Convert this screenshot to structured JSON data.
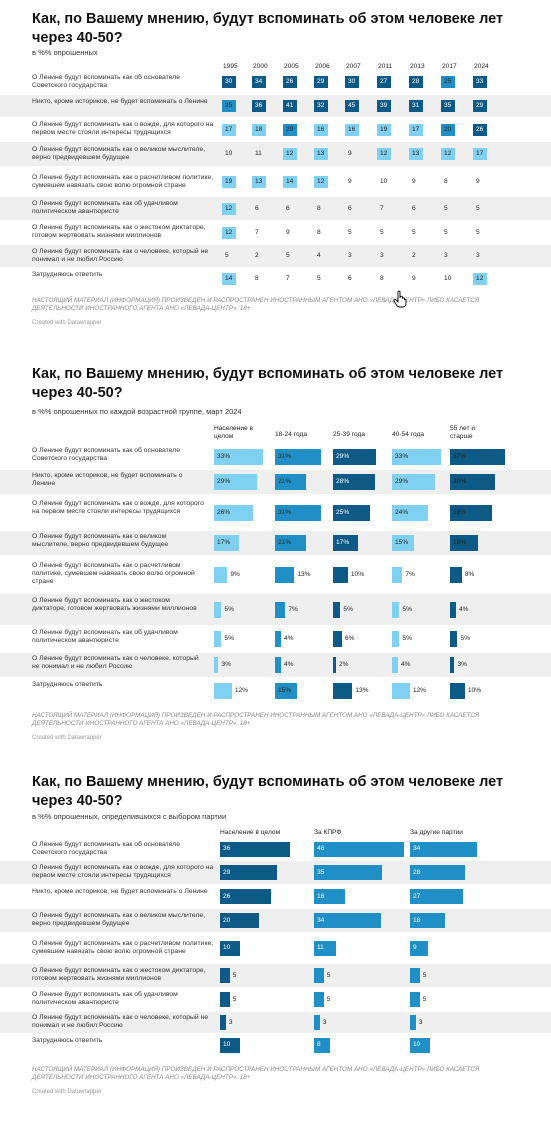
{
  "colors": {
    "dark": "#0d5a87",
    "mid": "#1f8fc6",
    "light": "#7fd0f1"
  },
  "charts": [
    {
      "title": "Как, по Вашему мнению, будут вспоминать об этом человеке лет через 40-50?",
      "subtitle": "в %% опрошенных",
      "note": "НАСТОЯЩИЙ МАТЕРИАЛ (ИНФОРМАЦИЯ) ПРОИЗВЕДЕН И РАСПРОСТРАНЕН ИНОСТРАННЫМ АГЕНТОМ АНО «ЛЕВАДА-ЦЕНТР» ЛИБО КАСАЕТСЯ ДЕЯТЕЛЬНОСТИ ИНОСТРАННОГО АГЕНТА АНО «ЛЕВАДА-ЦЕНТР». 18+",
      "credit": "Created with Datawrapper"
    },
    {
      "title": "Как, по Вашему мнению, будут вспоминать об этом человеке лет через 40-50?",
      "subtitle": "в %% опрошенных по каждой возрастной группе, март 2024",
      "note": "НАСТОЯЩИЙ МАТЕРИАЛ (ИНФОРМАЦИЯ) ПРОИЗВЕДЕН И РАСПРОСТРАНЕН ИНОСТРАННЫМ АГЕНТОМ АНО «ЛЕВАДА-ЦЕНТР» ЛИБО КАСАЕТСЯ ДЕЯТЕЛЬНОСТИ ИНОСТРАННОГО АГЕНТА АНО «ЛЕВАДА-ЦЕНТР». 18+",
      "credit": "Created with Datawrapper"
    },
    {
      "title": "Как, по Вашему мнению, будут вспоминать об этом человеке лет через 40-50?",
      "subtitle": "в %% опрошенных, определившихся с выбором партии",
      "note": "НАСТОЯЩИЙ МАТЕРИАЛ (ИНФОРМАЦИЯ) ПРОИЗВЕДЕН И РАСПРОСТРАНЕН ИНОСТРАННЫМ АГЕНТОМ АНО «ЛЕВАДА-ЦЕНТР» ЛИБО КАСАЕТСЯ ДЕЯТЕЛЬНОСТИ ИНОСТРАННОГО АГЕНТА АНО «ЛЕВАДА-ЦЕНТР». 18+",
      "credit": "Created with Datawrapper"
    }
  ],
  "chart_data": [
    {
      "type": "table",
      "columns": [
        "1995",
        "2000",
        "2005",
        "2006",
        "2007",
        "2011",
        "2013",
        "2017",
        "2024"
      ],
      "rows": [
        {
          "label": "О Ленине будут вспоминать как об основателе Советского государства",
          "values": [
            30,
            34,
            26,
            29,
            30,
            27,
            28,
            25,
            33
          ]
        },
        {
          "label": "Никто, кроме историков, не будет вспоминать о Ленине",
          "values": [
            25,
            36,
            41,
            32,
            45,
            39,
            31,
            35,
            29
          ]
        },
        {
          "label": "О Ленине будут вспоминать как о вожде, для которого на первом месте стояли интересы трудящихся",
          "values": [
            17,
            18,
            20,
            16,
            16,
            19,
            17,
            20,
            26
          ]
        },
        {
          "label": "О Ленине будут вспоминать как о великом мыслителе, верно предвидевшем будущее",
          "values": [
            10,
            11,
            12,
            13,
            9,
            12,
            13,
            12,
            17
          ]
        },
        {
          "label": "О Ленине будут вспоминать как о расчетливом политике, сумевшем навязать свою волю огромной стране",
          "values": [
            19,
            13,
            14,
            12,
            9,
            10,
            9,
            8,
            9
          ]
        },
        {
          "label": "О Ленине будут вспоминать как об удачливом политическом авантюристе",
          "values": [
            12,
            6,
            6,
            8,
            6,
            7,
            6,
            5,
            5
          ]
        },
        {
          "label": "О Ленине будут вспоминать как о жестоком диктаторе, готовом жертвовать жизнями миллионов",
          "values": [
            12,
            7,
            9,
            8,
            5,
            5,
            5,
            5,
            5
          ]
        },
        {
          "label": "О Ленине будут вспоминать как о человеке, который не понимал и не любил Россию",
          "values": [
            5,
            2,
            5,
            4,
            3,
            3,
            2,
            3,
            3
          ]
        },
        {
          "label": "Затрудняюсь ответить",
          "values": [
            14,
            8,
            7,
            5,
            6,
            8,
            9,
            10,
            12
          ]
        }
      ]
    },
    {
      "type": "table",
      "columns": [
        "Население в целом",
        "18-24 года",
        "25-39 года",
        "40-54 года",
        "55 лет и старше"
      ],
      "rows": [
        {
          "label": "О Ленине будут вспоминать как об основателе Советского государства",
          "values": [
            "33%",
            "31%",
            "29%",
            "33%",
            "37%"
          ]
        },
        {
          "label": "Никто, кроме историков, не будет вспоминать о Ленине",
          "values": [
            "29%",
            "21%",
            "28%",
            "29%",
            "30%"
          ]
        },
        {
          "label": "О Ленине будут вспоминать как о вожде, для которого на первом месте стояли интересы трудящихся",
          "values": [
            "26%",
            "31%",
            "25%",
            "24%",
            "28%"
          ]
        },
        {
          "label": "О Ленине будут вспоминать как о великом мыслителе, верно предвидевшем будущее",
          "values": [
            "17%",
            "21%",
            "17%",
            "15%",
            "19%"
          ]
        },
        {
          "label": "О Ленине будут вспоминать как о расчетливом политике, сумевшем навязать свою волю огромной стране",
          "values": [
            "9%",
            "13%",
            "10%",
            "7%",
            "8%"
          ]
        },
        {
          "label": "О Ленине будут вспоминать как о жестоком диктаторе, готовом жертвовать жизнями миллионов",
          "values": [
            "5%",
            "7%",
            "5%",
            "5%",
            "4%"
          ]
        },
        {
          "label": "О Ленине будут вспоминать как об удачливом политическом авантюристе",
          "values": [
            "5%",
            "4%",
            "6%",
            "5%",
            "5%"
          ]
        },
        {
          "label": "О Ленине будут вспоминать как о человеке, который не понимал и не любил Россию",
          "values": [
            "3%",
            "4%",
            "2%",
            "4%",
            "3%"
          ]
        },
        {
          "label": "Затрудняюсь ответить",
          "values": [
            "12%",
            "15%",
            "13%",
            "12%",
            "10%"
          ]
        }
      ]
    },
    {
      "type": "table",
      "columns": [
        "Население в целом",
        "За КПРФ",
        "За другие партии"
      ],
      "rows": [
        {
          "label": "О Ленине будут вспоминать как об основателе Советского государства",
          "values": [
            36,
            46,
            34
          ]
        },
        {
          "label": "О Ленине будут вспоминать как о вожде, для которого на первом месте стояли интересы трудящихся",
          "values": [
            29,
            35,
            28
          ]
        },
        {
          "label": "Никто, кроме историков, не будет вспоминать о Ленине",
          "values": [
            26,
            16,
            27
          ]
        },
        {
          "label": "О Ленине будут вспоминать как о великом мыслителе, верно предвидевшем будущее",
          "values": [
            20,
            34,
            18
          ]
        },
        {
          "label": "О Ленине будут вспоминать как о расчетливом политике, сумевшем навязать свою волю огромной стране",
          "values": [
            10,
            11,
            9
          ]
        },
        {
          "label": "О Ленине будут вспоминать как о жестоком диктаторе, готовом жертвовать жизнями миллионов",
          "values": [
            5,
            5,
            5
          ]
        },
        {
          "label": "О Ленине будут вспоминать как об удачливом политическом авантюристе",
          "values": [
            5,
            5,
            5
          ]
        },
        {
          "label": "О Ленине будут вспоминать как о человеке, который не понимал и не любил Россию",
          "values": [
            3,
            3,
            3
          ]
        },
        {
          "label": "Затрудняюсь ответить",
          "values": [
            10,
            8,
            10
          ]
        }
      ]
    }
  ]
}
